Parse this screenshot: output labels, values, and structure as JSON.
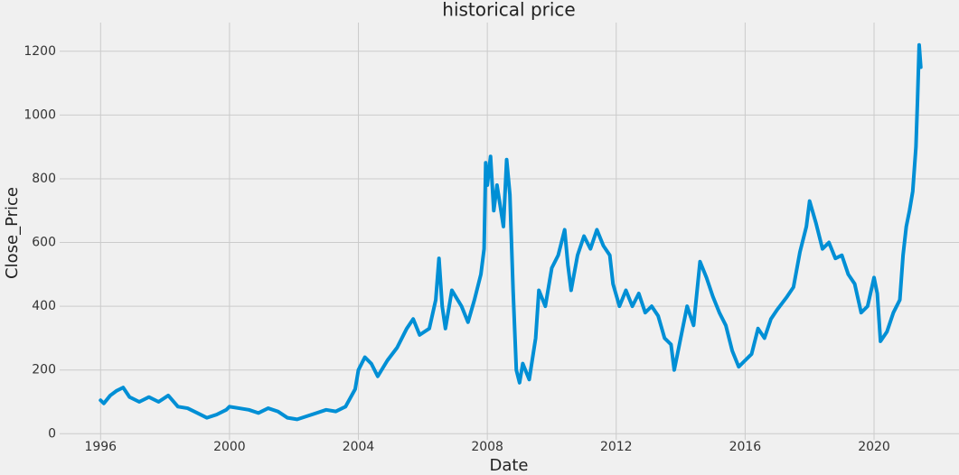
{
  "chart_data": {
    "type": "line",
    "title": "historical price",
    "x_label": "Date",
    "y_label": "Close_Price",
    "color": "#008fd5",
    "grid": true,
    "xlim": [
      1994.73,
      2022.72
    ],
    "ylim": [
      -19,
      1290
    ],
    "xticks": [
      1996,
      2000,
      2004,
      2008,
      2012,
      2016,
      2020
    ],
    "yticks": [
      0,
      200,
      400,
      600,
      800,
      1000,
      1200
    ],
    "x": [
      1996.0,
      1996.1,
      1996.3,
      1996.5,
      1996.7,
      1996.9,
      1997.2,
      1997.5,
      1997.8,
      1998.1,
      1998.4,
      1998.7,
      1999.0,
      1999.3,
      1999.6,
      1999.9,
      2000.0,
      2000.3,
      2000.6,
      2000.9,
      2001.2,
      2001.5,
      2001.8,
      2002.1,
      2002.4,
      2002.7,
      2003.0,
      2003.3,
      2003.6,
      2003.9,
      2004.0,
      2004.2,
      2004.4,
      2004.6,
      2004.9,
      2005.2,
      2005.5,
      2005.7,
      2005.9,
      2006.2,
      2006.4,
      2006.5,
      2006.6,
      2006.7,
      2006.9,
      2007.2,
      2007.4,
      2007.6,
      2007.8,
      2007.9,
      2007.95,
      2008.0,
      2008.1,
      2008.2,
      2008.3,
      2008.5,
      2008.6,
      2008.7,
      2008.8,
      2008.9,
      2009.0,
      2009.1,
      2009.3,
      2009.5,
      2009.6,
      2009.8,
      2010.0,
      2010.2,
      2010.4,
      2010.5,
      2010.6,
      2010.8,
      2011.0,
      2011.2,
      2011.4,
      2011.6,
      2011.8,
      2011.9,
      2012.1,
      2012.3,
      2012.5,
      2012.7,
      2012.9,
      2013.1,
      2013.3,
      2013.5,
      2013.7,
      2013.8,
      2014.0,
      2014.2,
      2014.4,
      2014.6,
      2014.8,
      2015.0,
      2015.2,
      2015.4,
      2015.6,
      2015.8,
      2016.0,
      2016.2,
      2016.4,
      2016.6,
      2016.8,
      2017.0,
      2017.3,
      2017.5,
      2017.7,
      2017.9,
      2018.0,
      2018.2,
      2018.4,
      2018.6,
      2018.8,
      2019.0,
      2019.2,
      2019.4,
      2019.6,
      2019.8,
      2020.0,
      2020.1,
      2020.2,
      2020.4,
      2020.6,
      2020.8,
      2020.9,
      2021.0,
      2021.1,
      2021.2,
      2021.3,
      2021.35,
      2021.4,
      2021.45
    ],
    "values": [
      105,
      95,
      120,
      135,
      145,
      115,
      100,
      115,
      100,
      120,
      85,
      80,
      65,
      50,
      60,
      75,
      85,
      80,
      75,
      65,
      80,
      70,
      50,
      45,
      55,
      65,
      75,
      70,
      85,
      140,
      200,
      240,
      220,
      180,
      230,
      270,
      330,
      360,
      310,
      330,
      420,
      550,
      400,
      330,
      450,
      400,
      350,
      420,
      500,
      580,
      850,
      780,
      870,
      700,
      780,
      650,
      860,
      750,
      450,
      200,
      160,
      220,
      170,
      300,
      450,
      400,
      520,
      560,
      640,
      530,
      450,
      560,
      620,
      580,
      640,
      590,
      560,
      470,
      400,
      450,
      400,
      440,
      380,
      400,
      370,
      300,
      280,
      200,
      300,
      400,
      340,
      540,
      490,
      430,
      380,
      340,
      260,
      210,
      230,
      250,
      330,
      300,
      360,
      390,
      430,
      460,
      570,
      650,
      730,
      660,
      580,
      600,
      550,
      560,
      500,
      470,
      380,
      400,
      490,
      440,
      290,
      320,
      380,
      420,
      560,
      650,
      700,
      760,
      900,
      1050,
      1220,
      1150
    ]
  }
}
